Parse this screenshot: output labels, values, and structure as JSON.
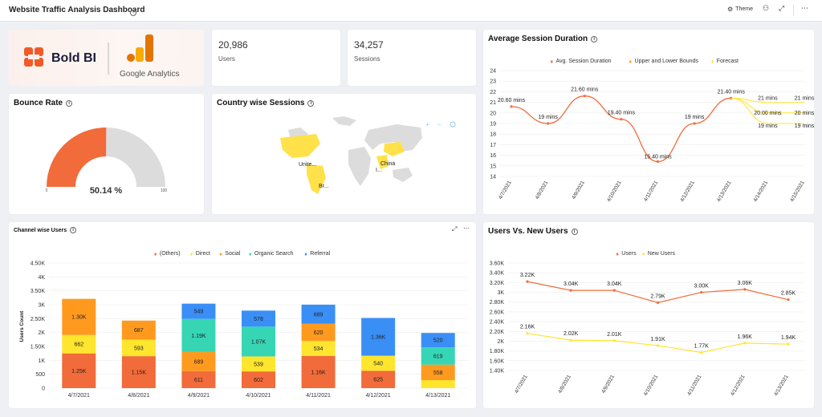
{
  "header": {
    "title": "Website Traffic Analysis Dashboard",
    "theme_label": "Theme"
  },
  "colors": {
    "orange": "#f26b3a",
    "yellow": "#ffe52e",
    "teal": "#36d6b5",
    "blue": "#3a8ff6",
    "amber": "#ff9a1f",
    "gauge_fill": "#f26b3a",
    "gauge_bg": "#dcdcdc"
  },
  "logos": {
    "boldbi": "Bold BI",
    "google": "Google Analytics"
  },
  "kpis": [
    {
      "value": "20,986",
      "label": "Users"
    },
    {
      "value": "34,257",
      "label": "Sessions"
    }
  ],
  "bounce": {
    "title": "Bounce Rate",
    "value_label": "50.14 %",
    "value": 50.14,
    "min_label": "0",
    "max_label": "100"
  },
  "country": {
    "title": "Country wise Sessions",
    "labels": [
      "Unite...",
      "China",
      "Br...",
      "I..."
    ]
  },
  "avg_session": {
    "title": "Average Session Duration",
    "chart_data": {
      "type": "line",
      "legend": [
        "Avg. Session Duration",
        "Upper and Lower Bounds",
        "Forecast"
      ],
      "x": [
        "4/7/2021",
        "4/8/2021",
        "4/9/2021",
        "4/10/2021",
        "4/11/2021",
        "4/12/2021",
        "4/13/2021",
        "4/14/2021",
        "4/15/2021"
      ],
      "series": [
        {
          "name": "Avg. Session Duration",
          "values": [
            20.6,
            19,
            21.6,
            19.4,
            15.4,
            19,
            21.4,
            null,
            null
          ],
          "labels": [
            "20.60 mins",
            "19 mins",
            "21.60 mins",
            "19.40 mins",
            "15.40 mins",
            "19 mins",
            "21.40 mins",
            "",
            ""
          ]
        },
        {
          "name": "Upper Bound",
          "values": [
            null,
            null,
            null,
            null,
            null,
            null,
            21.4,
            21,
            21
          ],
          "labels": [
            "",
            "",
            "",
            "",
            "",
            "",
            "",
            "21 mins",
            "21 mins"
          ]
        },
        {
          "name": "Forecast",
          "values": [
            null,
            null,
            null,
            null,
            null,
            null,
            21.4,
            20,
            20
          ],
          "labels": [
            "",
            "",
            "",
            "",
            "",
            "",
            "",
            "20.00 mins",
            "20 mins"
          ]
        },
        {
          "name": "Lower Bound",
          "values": [
            null,
            null,
            null,
            null,
            null,
            null,
            21.4,
            19,
            19
          ],
          "labels": [
            "",
            "",
            "",
            "",
            "",
            "",
            "",
            "19 mins",
            "19 mins"
          ]
        }
      ],
      "yticks": [
        "14",
        "15",
        "16",
        "17",
        "18",
        "19",
        "20",
        "21",
        "22",
        "23",
        "24"
      ],
      "ylim": [
        14,
        24
      ]
    }
  },
  "channel": {
    "title": "Channel wise Users",
    "chart_data": {
      "type": "bar",
      "stacked": true,
      "ylabel": "Users Count",
      "legend": [
        "(Others)",
        "Direct",
        "Social",
        "Organic Search",
        "Referral"
      ],
      "categories": [
        "4/7/2021",
        "4/8/2021",
        "4/9/2021",
        "4/10/2021",
        "4/11/2021",
        "4/12/2021",
        "4/13/2021"
      ],
      "yticks": [
        "0",
        "500",
        "1K",
        "1.50K",
        "2K",
        "2.50K",
        "3K",
        "3.50K",
        "4K",
        "4.50K"
      ],
      "ylim": [
        0,
        4500
      ],
      "stacks": [
        [
          {
            "v": 1250,
            "c": "orange",
            "l": "1.25K"
          },
          {
            "v": 662,
            "c": "yellow",
            "l": "662"
          },
          {
            "v": 1300,
            "c": "amber",
            "l": "1.30K"
          }
        ],
        [
          {
            "v": 1150,
            "c": "orange",
            "l": "1.15K"
          },
          {
            "v": 593,
            "c": "yellow",
            "l": "593"
          },
          {
            "v": 687,
            "c": "amber",
            "l": "687"
          }
        ],
        [
          {
            "v": 611,
            "c": "orange",
            "l": "611"
          },
          {
            "v": 689,
            "c": "amber",
            "l": "689"
          },
          {
            "v": 1190,
            "c": "teal",
            "l": "1.19K"
          },
          {
            "v": 549,
            "c": "blue",
            "l": "549"
          }
        ],
        [
          {
            "v": 602,
            "c": "orange",
            "l": "602"
          },
          {
            "v": 539,
            "c": "yellow",
            "l": "539"
          },
          {
            "v": 1070,
            "c": "teal",
            "l": "1.07K"
          },
          {
            "v": 578,
            "c": "blue",
            "l": "578"
          }
        ],
        [
          {
            "v": 1160,
            "c": "orange",
            "l": "1.16K"
          },
          {
            "v": 534,
            "c": "yellow",
            "l": "534"
          },
          {
            "v": 620,
            "c": "amber",
            "l": "620"
          },
          {
            "v": 689,
            "c": "blue",
            "l": "689"
          }
        ],
        [
          {
            "v": 625,
            "c": "orange",
            "l": "625"
          },
          {
            "v": 540,
            "c": "yellow",
            "l": "540"
          },
          {
            "v": 1360,
            "c": "blue",
            "l": "1.36K"
          }
        ],
        [
          {
            "v": 288,
            "c": "yellow",
            "l": ""
          },
          {
            "v": 558,
            "c": "amber",
            "l": "558"
          },
          {
            "v": 619,
            "c": "teal",
            "l": "619"
          },
          {
            "v": 520,
            "c": "blue",
            "l": "520"
          }
        ]
      ]
    }
  },
  "users_new": {
    "title": "Users Vs. New Users",
    "chart_data": {
      "type": "line",
      "legend": [
        "Users",
        "New Users"
      ],
      "x": [
        "4/7/2021",
        "4/8/2021",
        "4/9/2021",
        "4/10/2021",
        "4/11/2021",
        "4/12/2021",
        "4/13/2021"
      ],
      "series": [
        {
          "name": "Users",
          "values": [
            3220,
            3040,
            3040,
            2790,
            3000,
            3060,
            2850
          ],
          "labels": [
            "3.22K",
            "3.04K",
            "3.04K",
            "2.79K",
            "3.00K",
            "3.06K",
            "2.85K"
          ]
        },
        {
          "name": "New Users",
          "values": [
            2160,
            2020,
            2010,
            1910,
            1770,
            1960,
            1940
          ],
          "labels": [
            "2.16K",
            "2.02K",
            "2.01K",
            "1.91K",
            "1.77K",
            "1.96K",
            "1.94K"
          ]
        }
      ],
      "yticks": [
        "1.40K",
        "1.60K",
        "1.80K",
        "2K",
        "2.20K",
        "2.40K",
        "2.60K",
        "2.80K",
        "3K",
        "3.20K",
        "3.40K",
        "3.60K"
      ],
      "ylim": [
        1400,
        3600
      ]
    }
  }
}
